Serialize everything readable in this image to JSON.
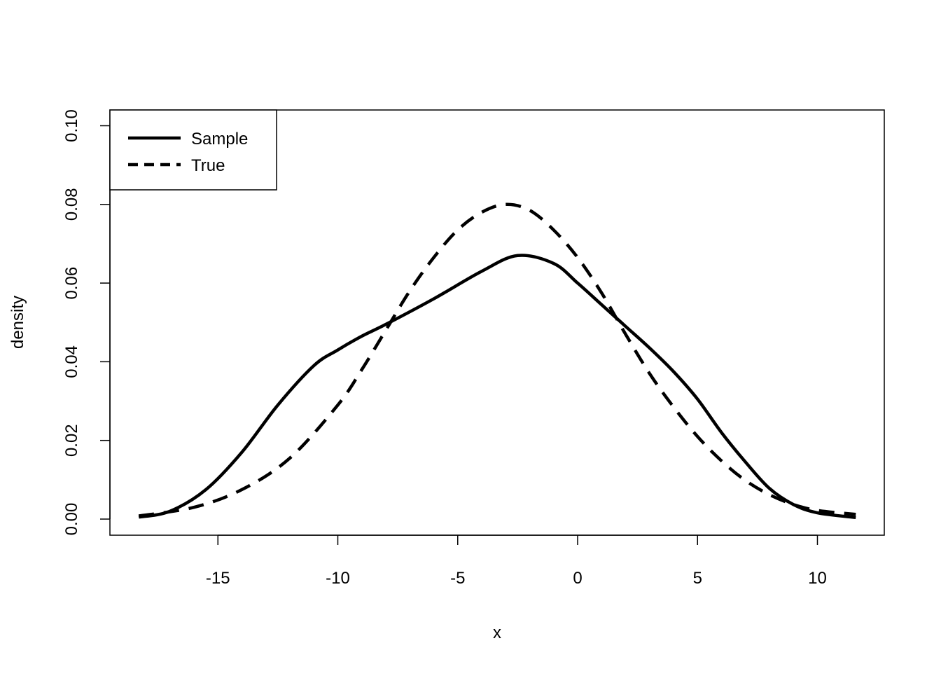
{
  "chart_data": {
    "type": "line",
    "title": "",
    "xlabel": "x",
    "ylabel": "density",
    "xlim": [
      -19.2,
      13.1
    ],
    "ylim": [
      -0.004,
      0.104
    ],
    "x_ticks": [
      -15,
      -10,
      -5,
      0,
      5,
      10
    ],
    "x_tick_labels": [
      "-15",
      "-10",
      "-5",
      "0",
      "5",
      "10"
    ],
    "y_ticks": [
      0,
      0.02,
      0.04,
      0.06,
      0.08,
      0.1
    ],
    "y_tick_labels": [
      "0.00",
      "0.02",
      "0.04",
      "0.06",
      "0.08",
      "0.10"
    ],
    "grid": false,
    "legend": {
      "position": "top-left",
      "entries": [
        "Sample",
        "True"
      ]
    },
    "series": [
      {
        "name": "Sample",
        "style": "solid",
        "color": "#000000",
        "x": [
          -18.3,
          -17,
          -15.5,
          -14,
          -12.5,
          -11,
          -10,
          -9,
          -8,
          -6,
          -4,
          -2.5,
          -1,
          0,
          1,
          2,
          3,
          4,
          5,
          6,
          7,
          8,
          9,
          10,
          11.6
        ],
        "y": [
          0.0005,
          0.002,
          0.0075,
          0.017,
          0.029,
          0.039,
          0.043,
          0.0465,
          0.0495,
          0.056,
          0.063,
          0.067,
          0.065,
          0.06,
          0.0545,
          0.049,
          0.0435,
          0.0375,
          0.0305,
          0.022,
          0.0145,
          0.0078,
          0.0037,
          0.0016,
          0.0004
        ]
      },
      {
        "name": "True",
        "style": "dashed",
        "color": "#000000",
        "x": [
          -18.3,
          -16,
          -14,
          -12,
          -10,
          -9,
          -8,
          -7,
          -6,
          -5,
          -4,
          -3,
          -2,
          -1,
          0,
          1,
          2,
          3,
          4,
          5,
          6,
          7,
          8,
          9,
          10,
          11.6
        ],
        "y": [
          0.0008,
          0.003,
          0.0075,
          0.0155,
          0.029,
          0.038,
          0.048,
          0.058,
          0.0665,
          0.0735,
          0.078,
          0.08,
          0.0785,
          0.0735,
          0.0665,
          0.0575,
          0.047,
          0.037,
          0.0285,
          0.021,
          0.0148,
          0.0098,
          0.0062,
          0.0037,
          0.0022,
          0.0012
        ]
      }
    ]
  }
}
